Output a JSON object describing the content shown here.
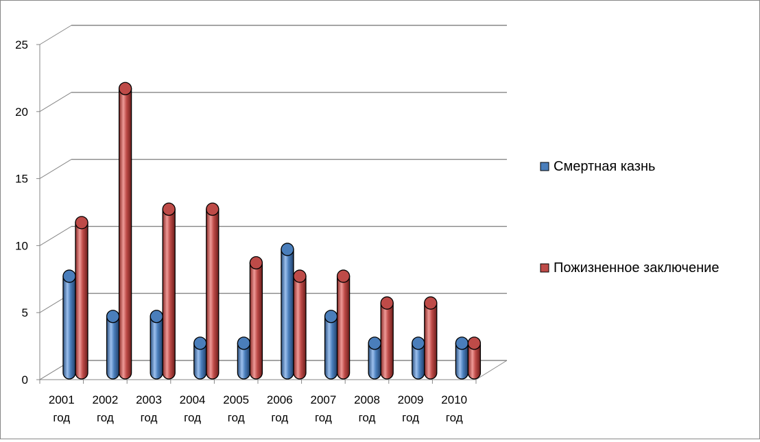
{
  "chart_data": {
    "type": "bar",
    "title": "",
    "categories": [
      [
        "2001",
        "год"
      ],
      [
        "2002",
        "год"
      ],
      [
        "2003",
        "год"
      ],
      [
        "2004",
        "год"
      ],
      [
        "2005",
        "год"
      ],
      [
        "2006",
        "год"
      ],
      [
        "2007",
        "год"
      ],
      [
        "2008",
        "год"
      ],
      [
        "2009",
        "год"
      ],
      [
        "2010",
        "год"
      ]
    ],
    "series": [
      {
        "name": "Смертная казнь",
        "color": "#4a7ebb",
        "values": [
          7,
          4,
          4,
          2,
          2,
          9,
          4,
          2,
          2,
          2
        ]
      },
      {
        "name": "Пожизненное заключение",
        "color": "#be4b48",
        "values": [
          11,
          21,
          12,
          12,
          8,
          7,
          7,
          5,
          5,
          2
        ]
      }
    ],
    "ylim": [
      0,
      25
    ],
    "yticks": [
      0,
      5,
      10,
      15,
      20,
      25
    ],
    "grid": true,
    "legend_position": "right",
    "style": "3d-cylinder"
  }
}
